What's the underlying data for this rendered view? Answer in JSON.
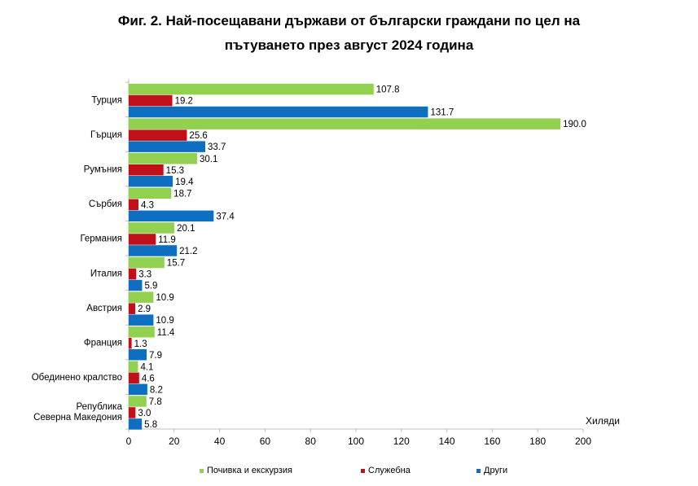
{
  "title_line1": "Фиг. 2. Най-посещавани държави от български граждани по цел на",
  "title_line2": "пътуването през август 2024 година",
  "chart_data": {
    "type": "bar",
    "orientation": "horizontal",
    "categories": [
      "Турция",
      "Гърция",
      "Румъния",
      "Сърбия",
      "Германия",
      "Италия",
      "Австрия",
      "Франция",
      "Обединено кралство",
      "Република Северна Македония"
    ],
    "category_label_lines": [
      [
        "Турция"
      ],
      [
        "Гърция"
      ],
      [
        "Румъния"
      ],
      [
        "Сърбия"
      ],
      [
        "Германия"
      ],
      [
        "Италия"
      ],
      [
        "Австрия"
      ],
      [
        "Франция"
      ],
      [
        "Обединено кралство"
      ],
      [
        "Република",
        "Северна Македония"
      ]
    ],
    "series": [
      {
        "name": "Почивка и екскурзия",
        "color": "#92D050",
        "values": [
          107.8,
          190.0,
          30.1,
          18.7,
          20.1,
          15.7,
          10.9,
          11.4,
          4.1,
          7.8
        ]
      },
      {
        "name": "Служебна",
        "color": "#C0111A",
        "values": [
          19.2,
          25.6,
          15.3,
          4.3,
          11.9,
          3.3,
          2.9,
          1.3,
          4.6,
          3.0
        ]
      },
      {
        "name": "Други",
        "color": "#0E6FC1",
        "values": [
          131.7,
          33.7,
          19.4,
          37.4,
          21.2,
          5.9,
          10.9,
          7.9,
          8.2,
          5.8
        ]
      }
    ],
    "xlim": [
      0,
      200
    ],
    "xticks": [
      0,
      20,
      40,
      60,
      80,
      100,
      120,
      140,
      160,
      180,
      200
    ],
    "xlabel": "Хиляди",
    "legend_position": "bottom",
    "grid": false
  }
}
